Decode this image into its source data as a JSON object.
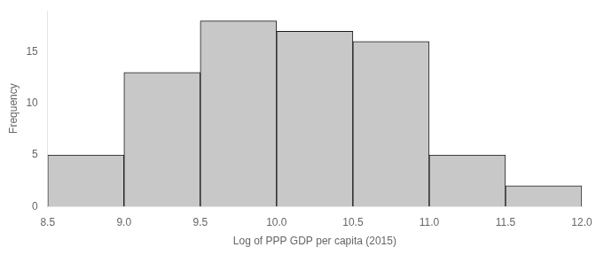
{
  "chart_data": {
    "type": "histogram",
    "xlabel": "Log of PPP GDP per capita (2015)",
    "ylabel": "Frequency",
    "bins": [
      8.5,
      9.0,
      9.5,
      10.0,
      10.5,
      11.0,
      11.5,
      12.0
    ],
    "values": [
      5,
      13,
      18,
      17,
      16,
      5,
      2
    ],
    "color": "#c8c8c8",
    "xlim": [
      8.5,
      12.0
    ],
    "ylim": [
      0,
      19
    ],
    "xticks": [
      8.5,
      {
        "value": 9.0,
        "label": "9.0"
      },
      9.5,
      {
        "value": 10.0,
        "label": "10.0"
      },
      10.5,
      {
        "value": 11.0,
        "label": "11.0"
      },
      11.5,
      {
        "value": 12.0,
        "label": "12.0"
      }
    ],
    "yticks": [
      0,
      5,
      10,
      15
    ],
    "grid": false
  }
}
